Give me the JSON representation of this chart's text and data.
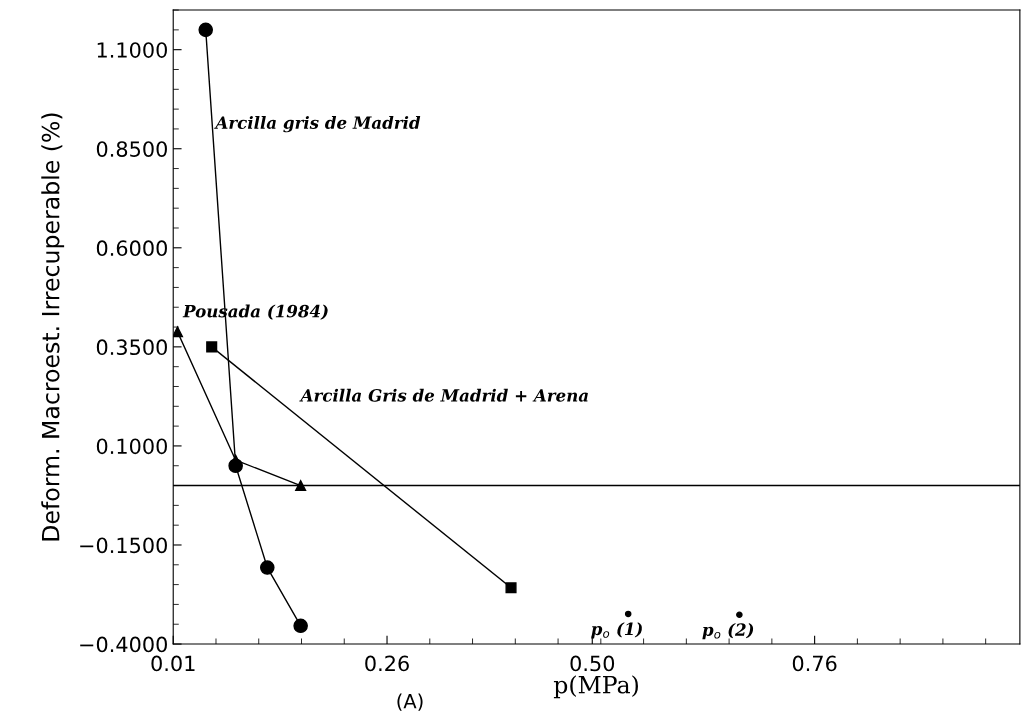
{
  "chart_data": {
    "type": "line",
    "xlabel": "p(MPa)",
    "ylabel": "Deform. Macroest. Irrecuperable (%)",
    "xlim": [
      0.01,
      1.0
    ],
    "xticks": [
      0.01,
      0.26,
      {
        "value": 0.5,
        "label": "0.50"
      },
      0.76
    ],
    "ylim": [
      -0.4,
      1.2
    ],
    "yticks": [
      {
        "value": 1.1,
        "label": "1.1000"
      },
      {
        "value": 0.85,
        "label": "0.8500"
      },
      {
        "value": 0.6,
        "label": "0.6000"
      },
      {
        "value": 0.35,
        "label": "0.3500"
      },
      {
        "value": 0.1,
        "label": "0.1000"
      },
      {
        "value": -0.15,
        "label": "−0.1500"
      },
      {
        "value": -0.4,
        "label": "−0.4000"
      }
    ],
    "grid": false,
    "legend": false,
    "line_style": "solid",
    "series": [
      {
        "name": "Arcilla gris de Madrid",
        "marker": "circle",
        "color": "#000000",
        "x": [
          0.048,
          0.083,
          0.12,
          0.159
        ],
        "values": [
          1.15,
          0.05,
          -0.207,
          -0.354
        ]
      },
      {
        "name": "Pousada (1984)",
        "marker": "triangle",
        "color": "#000000",
        "x": [
          0.015,
          0.083,
          0.159
        ],
        "values": [
          0.388,
          0.064,
          0.0
        ]
      },
      {
        "name": "Arcilla Gris de Madrid + Arena",
        "marker": "square",
        "color": "#000000",
        "x": [
          0.055,
          0.405
        ],
        "values": [
          0.35,
          -0.258
        ]
      },
      {
        "type": "scatter",
        "name": "p$_{o}$ (1)",
        "marker": "circle",
        "color": "#000000",
        "x": [
          0.542
        ],
        "values": [
          -0.324
        ]
      },
      {
        "type": "scatter",
        "name": "p$_{o}$ (2)",
        "marker": "circle",
        "color": "#000000",
        "x": [
          0.672
        ],
        "values": [
          -0.326
        ]
      }
    ],
    "ref_lines": [
      {
        "axis": "y",
        "value": 0.0,
        "color": "#000000",
        "line_style": "solid"
      }
    ],
    "annotations": [
      "(A)"
    ]
  }
}
